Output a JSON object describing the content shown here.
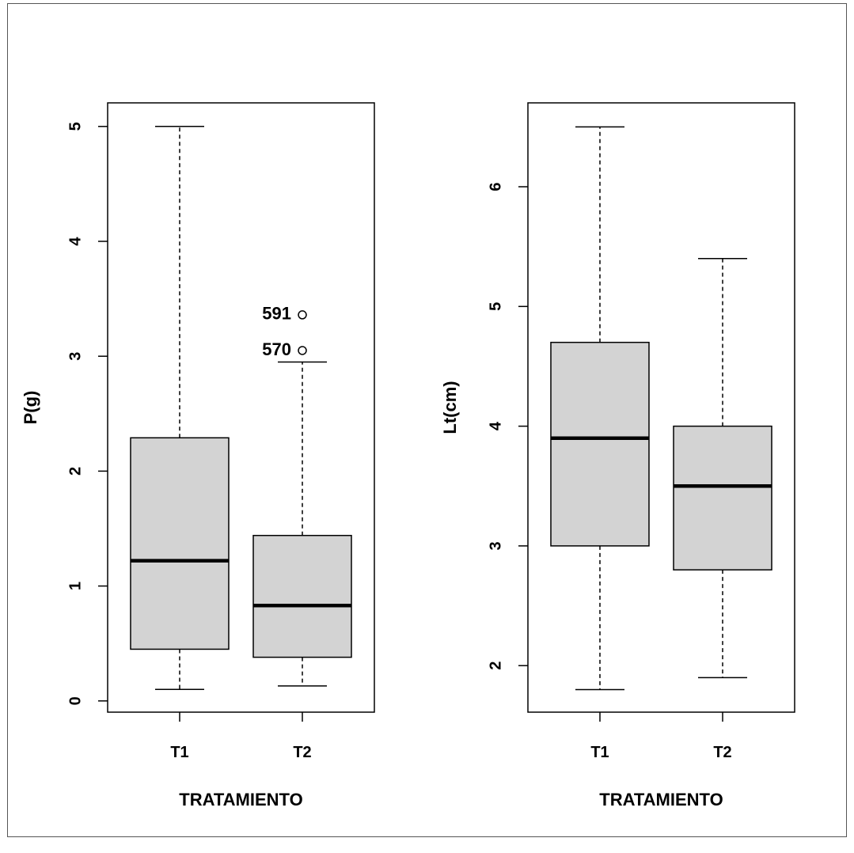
{
  "chart_data": [
    {
      "type": "box",
      "xlabel": "TRATAMIENTO",
      "ylabel": "P(g)",
      "ylim": [
        -0.1,
        5.2
      ],
      "yticks": [
        0,
        1,
        2,
        3,
        4,
        5
      ],
      "categories": [
        "T1",
        "T2"
      ],
      "boxes": [
        {
          "category": "T1",
          "min": 0.1,
          "q1": 0.45,
          "median": 1.22,
          "q3": 2.29,
          "max": 5.0,
          "outliers": []
        },
        {
          "category": "T2",
          "min": 0.13,
          "q1": 0.38,
          "median": 0.83,
          "q3": 1.44,
          "max": 2.95,
          "outliers": [
            {
              "value": 3.36,
              "label": "591"
            },
            {
              "value": 3.05,
              "label": "570"
            }
          ]
        }
      ]
    },
    {
      "type": "box",
      "xlabel": "TRATAMIENTO",
      "ylabel": "Lt(cm)",
      "ylim": [
        1.6,
        6.7
      ],
      "yticks": [
        2,
        3,
        4,
        5,
        6
      ],
      "categories": [
        "T1",
        "T2"
      ],
      "boxes": [
        {
          "category": "T1",
          "min": 1.8,
          "q1": 3.0,
          "median": 3.9,
          "q3": 4.7,
          "max": 6.5,
          "outliers": []
        },
        {
          "category": "T2",
          "min": 1.9,
          "q1": 2.8,
          "median": 3.5,
          "q3": 4.0,
          "max": 5.4,
          "outliers": []
        }
      ]
    }
  ]
}
